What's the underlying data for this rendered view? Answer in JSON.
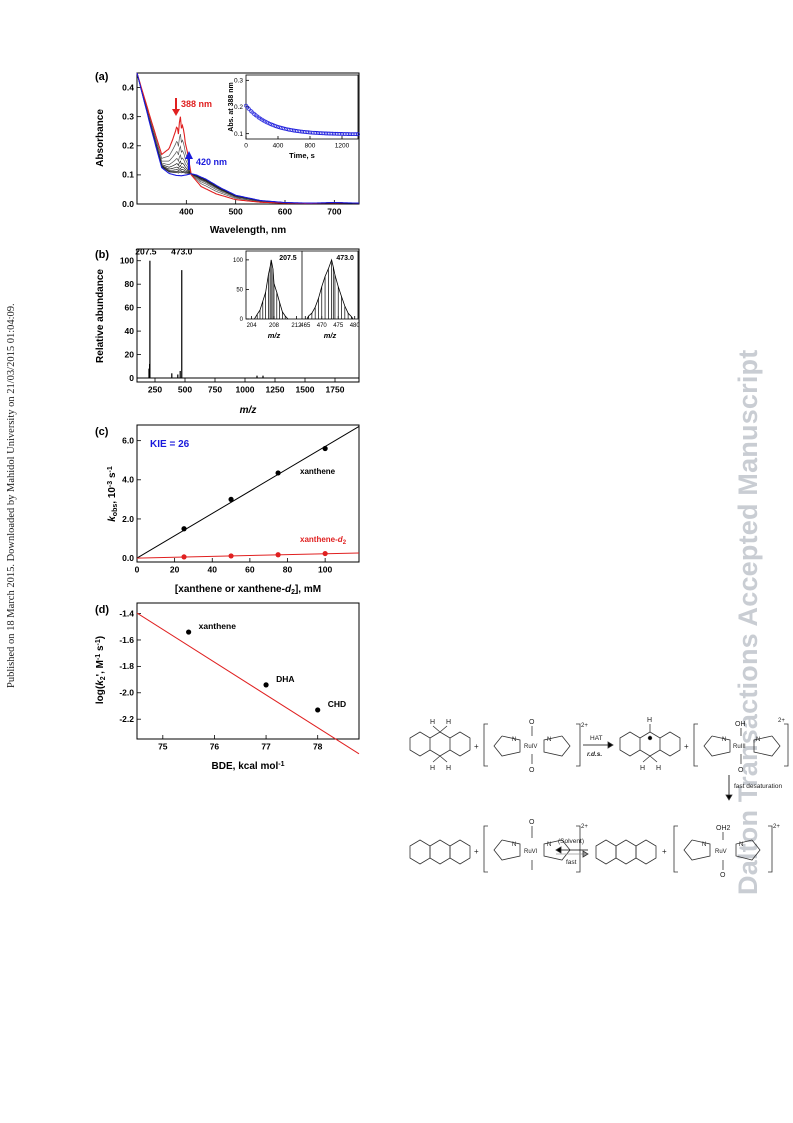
{
  "side_note": "Published on 18 March 2015. Downloaded by Mahidol University on 21/03/2015 01:04:09.",
  "watermark": "Dalton Transactions Accepted Manuscript",
  "colors": {
    "red": "#e02020",
    "blue": "#1a1adc",
    "black": "#000000"
  },
  "chart_data": [
    {
      "panel": "(a)",
      "type": "line",
      "xlabel": "Wavelength, nm",
      "ylabel": "Absorbance",
      "xlim": [
        300,
        750
      ],
      "ylim": [
        0,
        0.45
      ],
      "xticks": [
        "400",
        "500",
        "600",
        "700"
      ],
      "yticks": [
        "0.0",
        "0.1",
        "0.2",
        "0.3",
        "0.4"
      ],
      "annotations": [
        {
          "text": "388 nm",
          "x": 388,
          "color": "#e02020"
        },
        {
          "text": "420 nm",
          "x": 420,
          "color": "#1a1adc"
        }
      ],
      "series": [
        {
          "color": "#e02020",
          "x": [
            300,
            330,
            350,
            365,
            372,
            378,
            381,
            384,
            386,
            388,
            390,
            392,
            395,
            398,
            402,
            410,
            430,
            460,
            500,
            550,
            600,
            650,
            700,
            750
          ],
          "y": [
            0.45,
            0.28,
            0.17,
            0.19,
            0.22,
            0.25,
            0.27,
            0.24,
            0.28,
            0.3,
            0.26,
            0.27,
            0.25,
            0.21,
            0.18,
            0.1,
            0.06,
            0.035,
            0.015,
            0.006,
            0.003,
            0.002,
            0.004,
            0.003
          ]
        },
        {
          "color": "#1a1adc",
          "x": [
            300,
            330,
            350,
            365,
            380,
            390,
            400,
            410,
            420,
            440,
            470,
            500,
            550,
            600,
            650,
            700,
            750
          ],
          "y": [
            0.45,
            0.25,
            0.125,
            0.105,
            0.098,
            0.097,
            0.1,
            0.104,
            0.1,
            0.085,
            0.055,
            0.03,
            0.012,
            0.005,
            0.003,
            0.005,
            0.003
          ]
        }
      ],
      "inset": {
        "xlabel": "Time, s",
        "ylabel": "Abs. at 388 nm",
        "xlim": [
          0,
          1400
        ],
        "ylim": [
          0.08,
          0.32
        ],
        "xticks": [
          "0",
          "400",
          "800",
          "1200"
        ],
        "yticks": [
          "0.1",
          "0.2",
          "0.3"
        ],
        "series": {
          "color": "#1a1adc",
          "tau": 300,
          "y0": 0.205,
          "yinf": 0.097
        }
      }
    },
    {
      "panel": "(b)",
      "type": "bar",
      "xlabel": "m/z",
      "ylabel": "Relative abundance",
      "xlim": [
        100,
        1950
      ],
      "ylim": [
        0,
        110
      ],
      "xticks": [
        "250",
        "500",
        "750",
        "1000",
        "1250",
        "1500",
        "1750"
      ],
      "yticks": [
        "0",
        "20",
        "40",
        "60",
        "80",
        "100"
      ],
      "peaks": [
        [
          200,
          8
        ],
        [
          205,
          12
        ],
        [
          207.5,
          100
        ],
        [
          390,
          4
        ],
        [
          440,
          3
        ],
        [
          460,
          6
        ],
        [
          473,
          92
        ],
        [
          1100,
          2
        ],
        [
          1150,
          2
        ]
      ],
      "labels": [
        {
          "text": "207.5",
          "x": 207.5
        },
        {
          "text": "473.0",
          "x": 473
        }
      ],
      "insets": [
        {
          "xlim": [
            203,
            213
          ],
          "xticks": [
            "204",
            "208",
            "212"
          ],
          "yticks": [
            "0",
            "50",
            "100"
          ],
          "xlabel": "m/z",
          "peak_label": "207.5",
          "peaks": [
            [
              205,
              8
            ],
            [
              205.5,
              15
            ],
            [
              206,
              30
            ],
            [
              206.5,
              45
            ],
            [
              207,
              75
            ],
            [
              207.3,
              88
            ],
            [
              207.5,
              100
            ],
            [
              207.8,
              85
            ],
            [
              208,
              60
            ],
            [
              208.5,
              45
            ],
            [
              209,
              28
            ],
            [
              209.5,
              12
            ],
            [
              210,
              5
            ]
          ]
        },
        {
          "xlim": [
            464,
            481
          ],
          "xticks": [
            "465",
            "470",
            "475",
            "480"
          ],
          "xlabel": "m/z",
          "peak_label": "473.0",
          "peaks": [
            [
              466,
              5
            ],
            [
              467,
              10
            ],
            [
              468,
              20
            ],
            [
              469,
              35
            ],
            [
              470,
              55
            ],
            [
              471,
              72
            ],
            [
              472,
              85
            ],
            [
              473,
              100
            ],
            [
              473.5,
              88
            ],
            [
              474,
              75
            ],
            [
              475,
              55
            ],
            [
              476,
              38
            ],
            [
              477,
              22
            ],
            [
              478,
              10
            ],
            [
              479,
              4
            ]
          ]
        }
      ]
    },
    {
      "panel": "(c)",
      "type": "scatter",
      "xlabel": "[xanthene or xanthene-d2], mM",
      "ylabel": "kobs, 10-3 s-1",
      "xlim": [
        0,
        118
      ],
      "ylim": [
        -0.2,
        6.8
      ],
      "xticks": [
        "0",
        "20",
        "40",
        "60",
        "80",
        "100"
      ],
      "yticks": [
        "0.0",
        "2.0",
        "4.0",
        "6.0"
      ],
      "annotation": "KIE = 26",
      "series": [
        {
          "name": "xanthene",
          "color": "#000000",
          "x": [
            25,
            50,
            75,
            100
          ],
          "y": [
            1.5,
            3.0,
            4.35,
            5.6
          ],
          "fit": [
            0,
            0.057
          ]
        },
        {
          "name": "xanthene-d2",
          "color": "#e02020",
          "x": [
            25,
            50,
            75,
            100
          ],
          "y": [
            0.06,
            0.11,
            0.17,
            0.23
          ],
          "fit": [
            0,
            0.0022
          ]
        }
      ]
    },
    {
      "panel": "(d)",
      "type": "scatter",
      "xlabel": "BDE, kcal mol-1",
      "ylabel": "log(k2', M-1 s-1)",
      "xlim": [
        74.5,
        78.8
      ],
      "ylim": [
        -2.35,
        -1.32
      ],
      "xticks": [
        "75",
        "76",
        "77",
        "78"
      ],
      "yticks": [
        "-1.4",
        "-1.6",
        "-1.8",
        "-2.0",
        "-2.2"
      ],
      "points": [
        {
          "name": "xanthene",
          "x": 75.5,
          "y": -1.54
        },
        {
          "name": "DHA",
          "x": 77,
          "y": -1.94
        },
        {
          "name": "CHD",
          "x": 78,
          "y": -2.13
        }
      ],
      "fit": {
        "slope": -0.248,
        "intercept": 17.08,
        "color": "#e02020"
      }
    }
  ],
  "scheme": {
    "arrow_labels": {
      "hat": "HAT",
      "rds": "r.d.s.",
      "desat": "fast desaturation",
      "solvent": "(Solvent)",
      "fast": "fast"
    },
    "charges": [
      "2+",
      "2+",
      "2+",
      "2+"
    ],
    "plus": "+",
    "atoms": {
      "H": "H",
      "O": "O",
      "OH": "OH",
      "OH2": "OH2",
      "N": "N",
      "Ru4": "RuIV",
      "Ru3": "RuIII",
      "Ru6": "RuVI",
      "Ru5": "RuV"
    }
  }
}
